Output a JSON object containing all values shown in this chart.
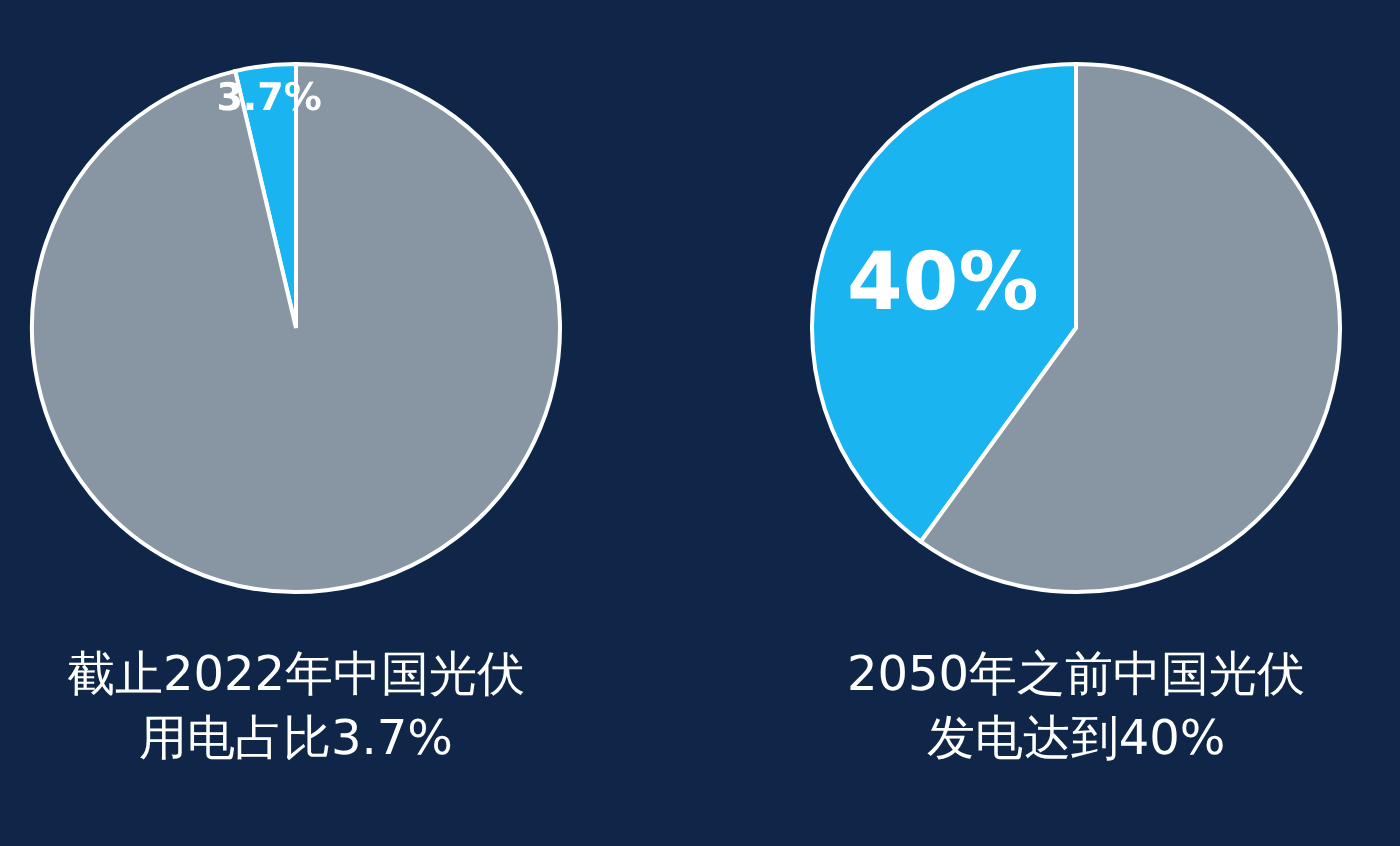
{
  "chart_data": [
    {
      "type": "pie",
      "title": "截止2022年中国光伏用电占比3.7%",
      "categories": [
        null,
        null
      ],
      "values": [
        3.7,
        96.3
      ],
      "colors": [
        "#1ab4f0",
        "#8896a3"
      ],
      "value_labels": [
        "3.7%",
        null
      ]
    },
    {
      "type": "pie",
      "title": "2050年之前中国光伏发电达到40%",
      "categories": [
        null,
        null
      ],
      "values": [
        40,
        60
      ],
      "colors": [
        "#1ab4f0",
        "#8896a3"
      ],
      "value_labels": [
        "40%",
        null
      ]
    }
  ]
}
